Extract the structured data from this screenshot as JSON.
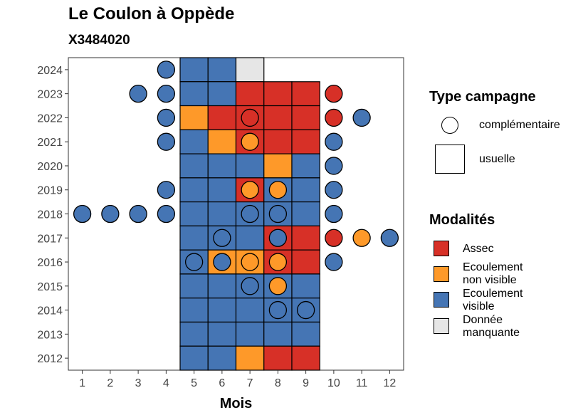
{
  "chart_data": {
    "type": "heatmap",
    "title": "Le Coulon à Oppède",
    "subtitle": "X3484020",
    "xlabel": "Mois",
    "ylabel": "",
    "x_ticks": [
      1,
      2,
      3,
      4,
      5,
      6,
      7,
      8,
      9,
      10,
      11,
      12
    ],
    "y_ticks": [
      2012,
      2013,
      2014,
      2015,
      2016,
      2017,
      2018,
      2019,
      2020,
      2021,
      2022,
      2023,
      2024
    ],
    "xlim": [
      0.5,
      12.5
    ],
    "ylim": [
      2011.5,
      2024.5
    ],
    "grid": false,
    "colors": {
      "assec": "#d73027",
      "ecoulement_non_visible": "#fe9929",
      "ecoulement_visible": "#4575b4",
      "donnee_manquante": "#e6e6e6"
    },
    "usuelle": [
      {
        "year": 2024,
        "months": [
          "visible",
          "visible",
          "manquante"
        ]
      },
      {
        "year": 2023,
        "months": [
          "visible",
          "visible",
          "assec",
          "assec",
          "assec"
        ]
      },
      {
        "year": 2022,
        "months": [
          "non_visible",
          "assec",
          "assec",
          "assec",
          "assec"
        ]
      },
      {
        "year": 2021,
        "months": [
          "visible",
          "non_visible",
          "assec",
          "assec",
          "assec"
        ]
      },
      {
        "year": 2020,
        "months": [
          "visible",
          "visible",
          "visible",
          "non_visible",
          "visible"
        ]
      },
      {
        "year": 2019,
        "months": [
          "visible",
          "visible",
          "assec",
          "visible",
          "visible"
        ]
      },
      {
        "year": 2018,
        "months": [
          "visible",
          "visible",
          "visible",
          "visible",
          "visible"
        ]
      },
      {
        "year": 2017,
        "months": [
          "visible",
          "visible",
          "visible",
          "assec",
          "assec"
        ]
      },
      {
        "year": 2016,
        "months": [
          "visible",
          "non_visible",
          "non_visible",
          "assec",
          "assec"
        ]
      },
      {
        "year": 2015,
        "months": [
          "visible",
          "visible",
          "visible",
          "visible",
          "visible"
        ]
      },
      {
        "year": 2014,
        "months": [
          "visible",
          "visible",
          "visible",
          "visible",
          "visible"
        ]
      },
      {
        "year": 2013,
        "months": [
          "visible",
          "visible",
          "visible",
          "visible",
          "visible"
        ]
      },
      {
        "year": 2012,
        "months": [
          "visible",
          "visible",
          "non_visible",
          "assec",
          "assec"
        ]
      }
    ],
    "complementaire": [
      {
        "year": 2024,
        "month": 4,
        "status": "visible"
      },
      {
        "year": 2023,
        "month": 3,
        "status": "visible"
      },
      {
        "year": 2023,
        "month": 4,
        "status": "visible"
      },
      {
        "year": 2023,
        "month": 10,
        "status": "assec"
      },
      {
        "year": 2022,
        "month": 4,
        "status": "visible"
      },
      {
        "year": 2022,
        "month": 7,
        "status": "assec"
      },
      {
        "year": 2022,
        "month": 10,
        "status": "assec"
      },
      {
        "year": 2022,
        "month": 11,
        "status": "visible"
      },
      {
        "year": 2021,
        "month": 4,
        "status": "visible"
      },
      {
        "year": 2021,
        "month": 7,
        "status": "non_visible"
      },
      {
        "year": 2021,
        "month": 10,
        "status": "visible"
      },
      {
        "year": 2020,
        "month": 10,
        "status": "visible"
      },
      {
        "year": 2019,
        "month": 4,
        "status": "visible"
      },
      {
        "year": 2019,
        "month": 7,
        "status": "non_visible"
      },
      {
        "year": 2019,
        "month": 8,
        "status": "non_visible"
      },
      {
        "year": 2019,
        "month": 10,
        "status": "visible"
      },
      {
        "year": 2018,
        "month": 1,
        "status": "visible"
      },
      {
        "year": 2018,
        "month": 2,
        "status": "visible"
      },
      {
        "year": 2018,
        "month": 3,
        "status": "visible"
      },
      {
        "year": 2018,
        "month": 4,
        "status": "visible"
      },
      {
        "year": 2018,
        "month": 7,
        "status": "visible"
      },
      {
        "year": 2018,
        "month": 8,
        "status": "visible"
      },
      {
        "year": 2018,
        "month": 10,
        "status": "visible"
      },
      {
        "year": 2017,
        "month": 6,
        "status": "visible"
      },
      {
        "year": 2017,
        "month": 8,
        "status": "visible"
      },
      {
        "year": 2017,
        "month": 10,
        "status": "assec"
      },
      {
        "year": 2017,
        "month": 11,
        "status": "non_visible"
      },
      {
        "year": 2017,
        "month": 12,
        "status": "visible"
      },
      {
        "year": 2016,
        "month": 5,
        "status": "visible"
      },
      {
        "year": 2016,
        "month": 6,
        "status": "visible"
      },
      {
        "year": 2016,
        "month": 7,
        "status": "non_visible"
      },
      {
        "year": 2016,
        "month": 8,
        "status": "non_visible"
      },
      {
        "year": 2016,
        "month": 10,
        "status": "visible"
      },
      {
        "year": 2015,
        "month": 7,
        "status": "visible"
      },
      {
        "year": 2015,
        "month": 8,
        "status": "non_visible"
      },
      {
        "year": 2014,
        "month": 8,
        "status": "visible"
      },
      {
        "year": 2014,
        "month": 9,
        "status": "visible"
      }
    ],
    "usuelle_start_month": 5,
    "legend_shape": {
      "title": "Type campagne",
      "items": [
        "complémentaire",
        "usuelle"
      ]
    },
    "legend_fill": {
      "title": "Modalités",
      "items": [
        {
          "key": "assec",
          "label": "Assec"
        },
        {
          "key": "non_visible",
          "label": "Ecoulement\nnon visible"
        },
        {
          "key": "visible",
          "label": "Ecoulement\nvisible"
        },
        {
          "key": "manquante",
          "label": "Donnée\nmanquante"
        }
      ]
    }
  }
}
